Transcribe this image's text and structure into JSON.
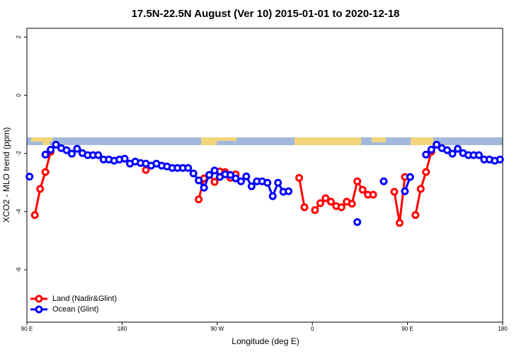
{
  "chart_data": {
    "type": "line",
    "title": "17.5N-22.5N August (Ver 10)   2015-01-01 to 2020-12-18",
    "x_label": "Longitude (deg E)",
    "y_label": "XCO2 - MLO trend (ppm)",
    "x": [
      92.5,
      97.5,
      102.5,
      107.5,
      112.5,
      117.5,
      122.5,
      127.5,
      132.5,
      137.5,
      142.5,
      147.5,
      152.5,
      157.5,
      162.5,
      167.5,
      172.5,
      177.5,
      182.5,
      187.5,
      192.5,
      197.5,
      202.5,
      207.5,
      212.5,
      217.5,
      222.5,
      227.5,
      232.5,
      237.5,
      242.5,
      247.5,
      252.5,
      257.5,
      262.5,
      267.5,
      272.5,
      277.5,
      282.5,
      287.5,
      292.5,
      297.5,
      302.5,
      307.5,
      312.5,
      317.5,
      322.5,
      327.5,
      332.5,
      337.5,
      342.5,
      347.5,
      352.5,
      357.5,
      362.5,
      367.5,
      372.5,
      377.5,
      382.5,
      387.5,
      392.5,
      397.5,
      402.5,
      407.5,
      412.5,
      417.5,
      422.5,
      427.5,
      432.5,
      437.5,
      442.5,
      447.5,
      452.5,
      457.5,
      462.5,
      467.5,
      472.5,
      477.5,
      482.5,
      487.5,
      492.5,
      497.5,
      502.5,
      507.5,
      512.5,
      517.5,
      522.5,
      527.5,
      532.5,
      537.5
    ],
    "series": [
      {
        "name": "Land (Nadir&Glint)",
        "color": "#ff0000",
        "values": [
          null,
          -4.12,
          -3.22,
          -2.64,
          -1.94,
          null,
          null,
          null,
          null,
          null,
          null,
          null,
          null,
          null,
          null,
          null,
          null,
          null,
          null,
          null,
          null,
          null,
          -2.57,
          null,
          null,
          null,
          null,
          null,
          null,
          null,
          null,
          null,
          -3.58,
          -2.86,
          -2.74,
          -2.98,
          -2.62,
          -2.64,
          -2.84,
          -2.72,
          null,
          null,
          null,
          null,
          null,
          null,
          null,
          null,
          null,
          null,
          null,
          -2.84,
          -3.85,
          null,
          -3.95,
          -3.71,
          -3.54,
          -3.66,
          -3.81,
          -3.85,
          -3.66,
          -3.73,
          -2.96,
          -3.25,
          -3.42,
          -3.42,
          null,
          null,
          null,
          -3.32,
          -4.39,
          -2.81,
          null,
          -4.12,
          -3.22,
          -2.64,
          -1.94,
          null,
          null,
          null,
          null,
          null,
          null,
          null,
          null,
          null,
          null,
          null,
          null,
          null
        ]
      },
      {
        "name": "Ocean (Glint)",
        "color": "#0000ff",
        "values": [
          -2.8,
          null,
          null,
          -2.04,
          -1.87,
          -1.7,
          -1.82,
          -1.89,
          -2.01,
          -1.84,
          -1.99,
          -2.06,
          -2.06,
          -2.06,
          -2.21,
          -2.21,
          -2.25,
          -2.21,
          -2.18,
          -2.35,
          -2.28,
          -2.33,
          -2.35,
          -2.42,
          -2.35,
          -2.42,
          -2.45,
          -2.5,
          -2.5,
          -2.5,
          -2.5,
          -2.69,
          -2.93,
          -3.18,
          -2.74,
          -2.59,
          -2.81,
          -2.72,
          -2.74,
          -2.86,
          -2.96,
          -2.79,
          -3.13,
          -2.96,
          -2.96,
          -3.01,
          -3.47,
          -3.01,
          -3.32,
          -3.3,
          null,
          null,
          null,
          null,
          null,
          null,
          null,
          null,
          null,
          null,
          null,
          null,
          -4.36,
          null,
          null,
          null,
          null,
          -2.96,
          null,
          null,
          null,
          -3.3,
          -2.81,
          null,
          null,
          -2.04,
          -1.87,
          -1.7,
          -1.82,
          -1.89,
          -2.01,
          -1.84,
          -1.99,
          -2.06,
          -2.06,
          -2.06,
          -2.21,
          -2.21,
          -2.25,
          -2.21
        ]
      }
    ],
    "xlim": [
      90,
      540
    ],
    "xticks": [
      {
        "value": 90,
        "label": "90 E"
      },
      {
        "value": 180,
        "label": "180"
      },
      {
        "value": 270,
        "label": "90 W"
      },
      {
        "value": 360,
        "label": "0"
      },
      {
        "value": 450,
        "label": "90 E"
      },
      {
        "value": 540,
        "label": "180"
      }
    ],
    "ylim": [
      -7.8,
      2.3
    ],
    "yticks": [
      2,
      0,
      -2,
      -4,
      -6
    ],
    "legend": "bottom-left"
  }
}
